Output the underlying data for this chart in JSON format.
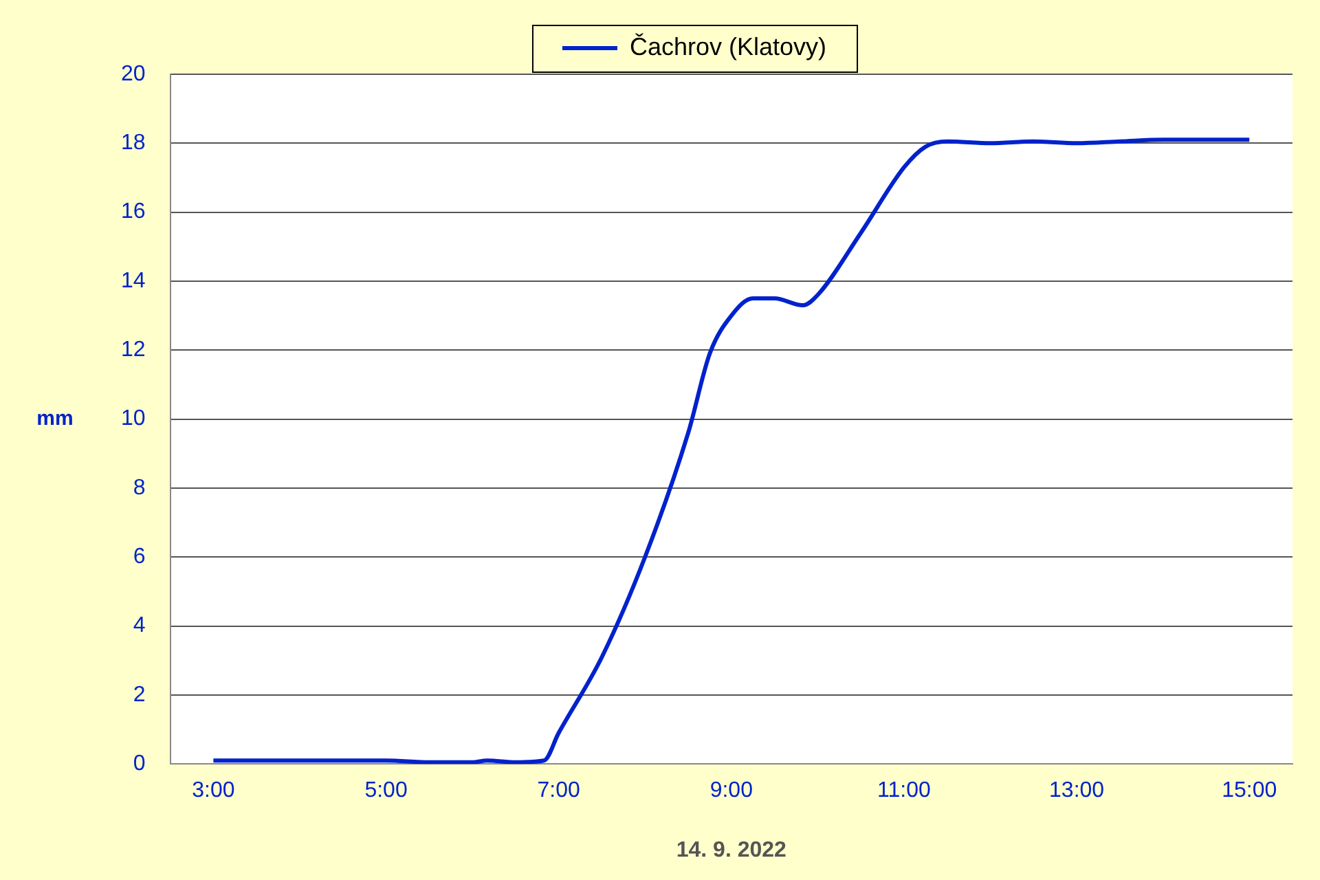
{
  "chart_data": {
    "type": "line",
    "xlabel": "14. 9. 2022",
    "ylabel": "mm",
    "x": [
      3,
      3.5,
      4,
      4.5,
      5,
      5.5,
      6,
      6.17,
      6.5,
      6.83,
      7,
      7.5,
      8,
      8.5,
      8.75,
      9,
      9.25,
      9.5,
      9.83,
      10,
      10.5,
      11,
      11.25,
      11.5,
      12,
      12.5,
      13,
      13.5,
      14,
      14.5,
      15
    ],
    "series": [
      {
        "name": "Čachrov (Klatovy)",
        "color": "#0022cc",
        "values": [
          0.1,
          0.1,
          0.1,
          0.1,
          0.1,
          0.05,
          0.05,
          0.1,
          0.05,
          0.1,
          0.9,
          3.1,
          6.0,
          9.6,
          11.9,
          13.0,
          13.5,
          13.5,
          13.3,
          13.6,
          15.4,
          17.3,
          17.9,
          18.05,
          18.0,
          18.05,
          18.0,
          18.05,
          18.1,
          18.1,
          18.1
        ]
      }
    ],
    "xlim": [
      2.5,
      15.5
    ],
    "xticks": [
      {
        "value": 3,
        "label": "3:00"
      },
      {
        "value": 5,
        "label": "5:00"
      },
      {
        "value": 7,
        "label": "7:00"
      },
      {
        "value": 9,
        "label": "9:00"
      },
      {
        "value": 11,
        "label": "11:00"
      },
      {
        "value": 13,
        "label": "13:00"
      },
      {
        "value": 15,
        "label": "15:00"
      }
    ],
    "ylim": [
      0,
      20
    ],
    "yticks": [
      0,
      2,
      4,
      6,
      8,
      10,
      12,
      14,
      16,
      18,
      20
    ],
    "grid": "y",
    "legend": "top",
    "marker": "none",
    "line_style": "solid"
  }
}
